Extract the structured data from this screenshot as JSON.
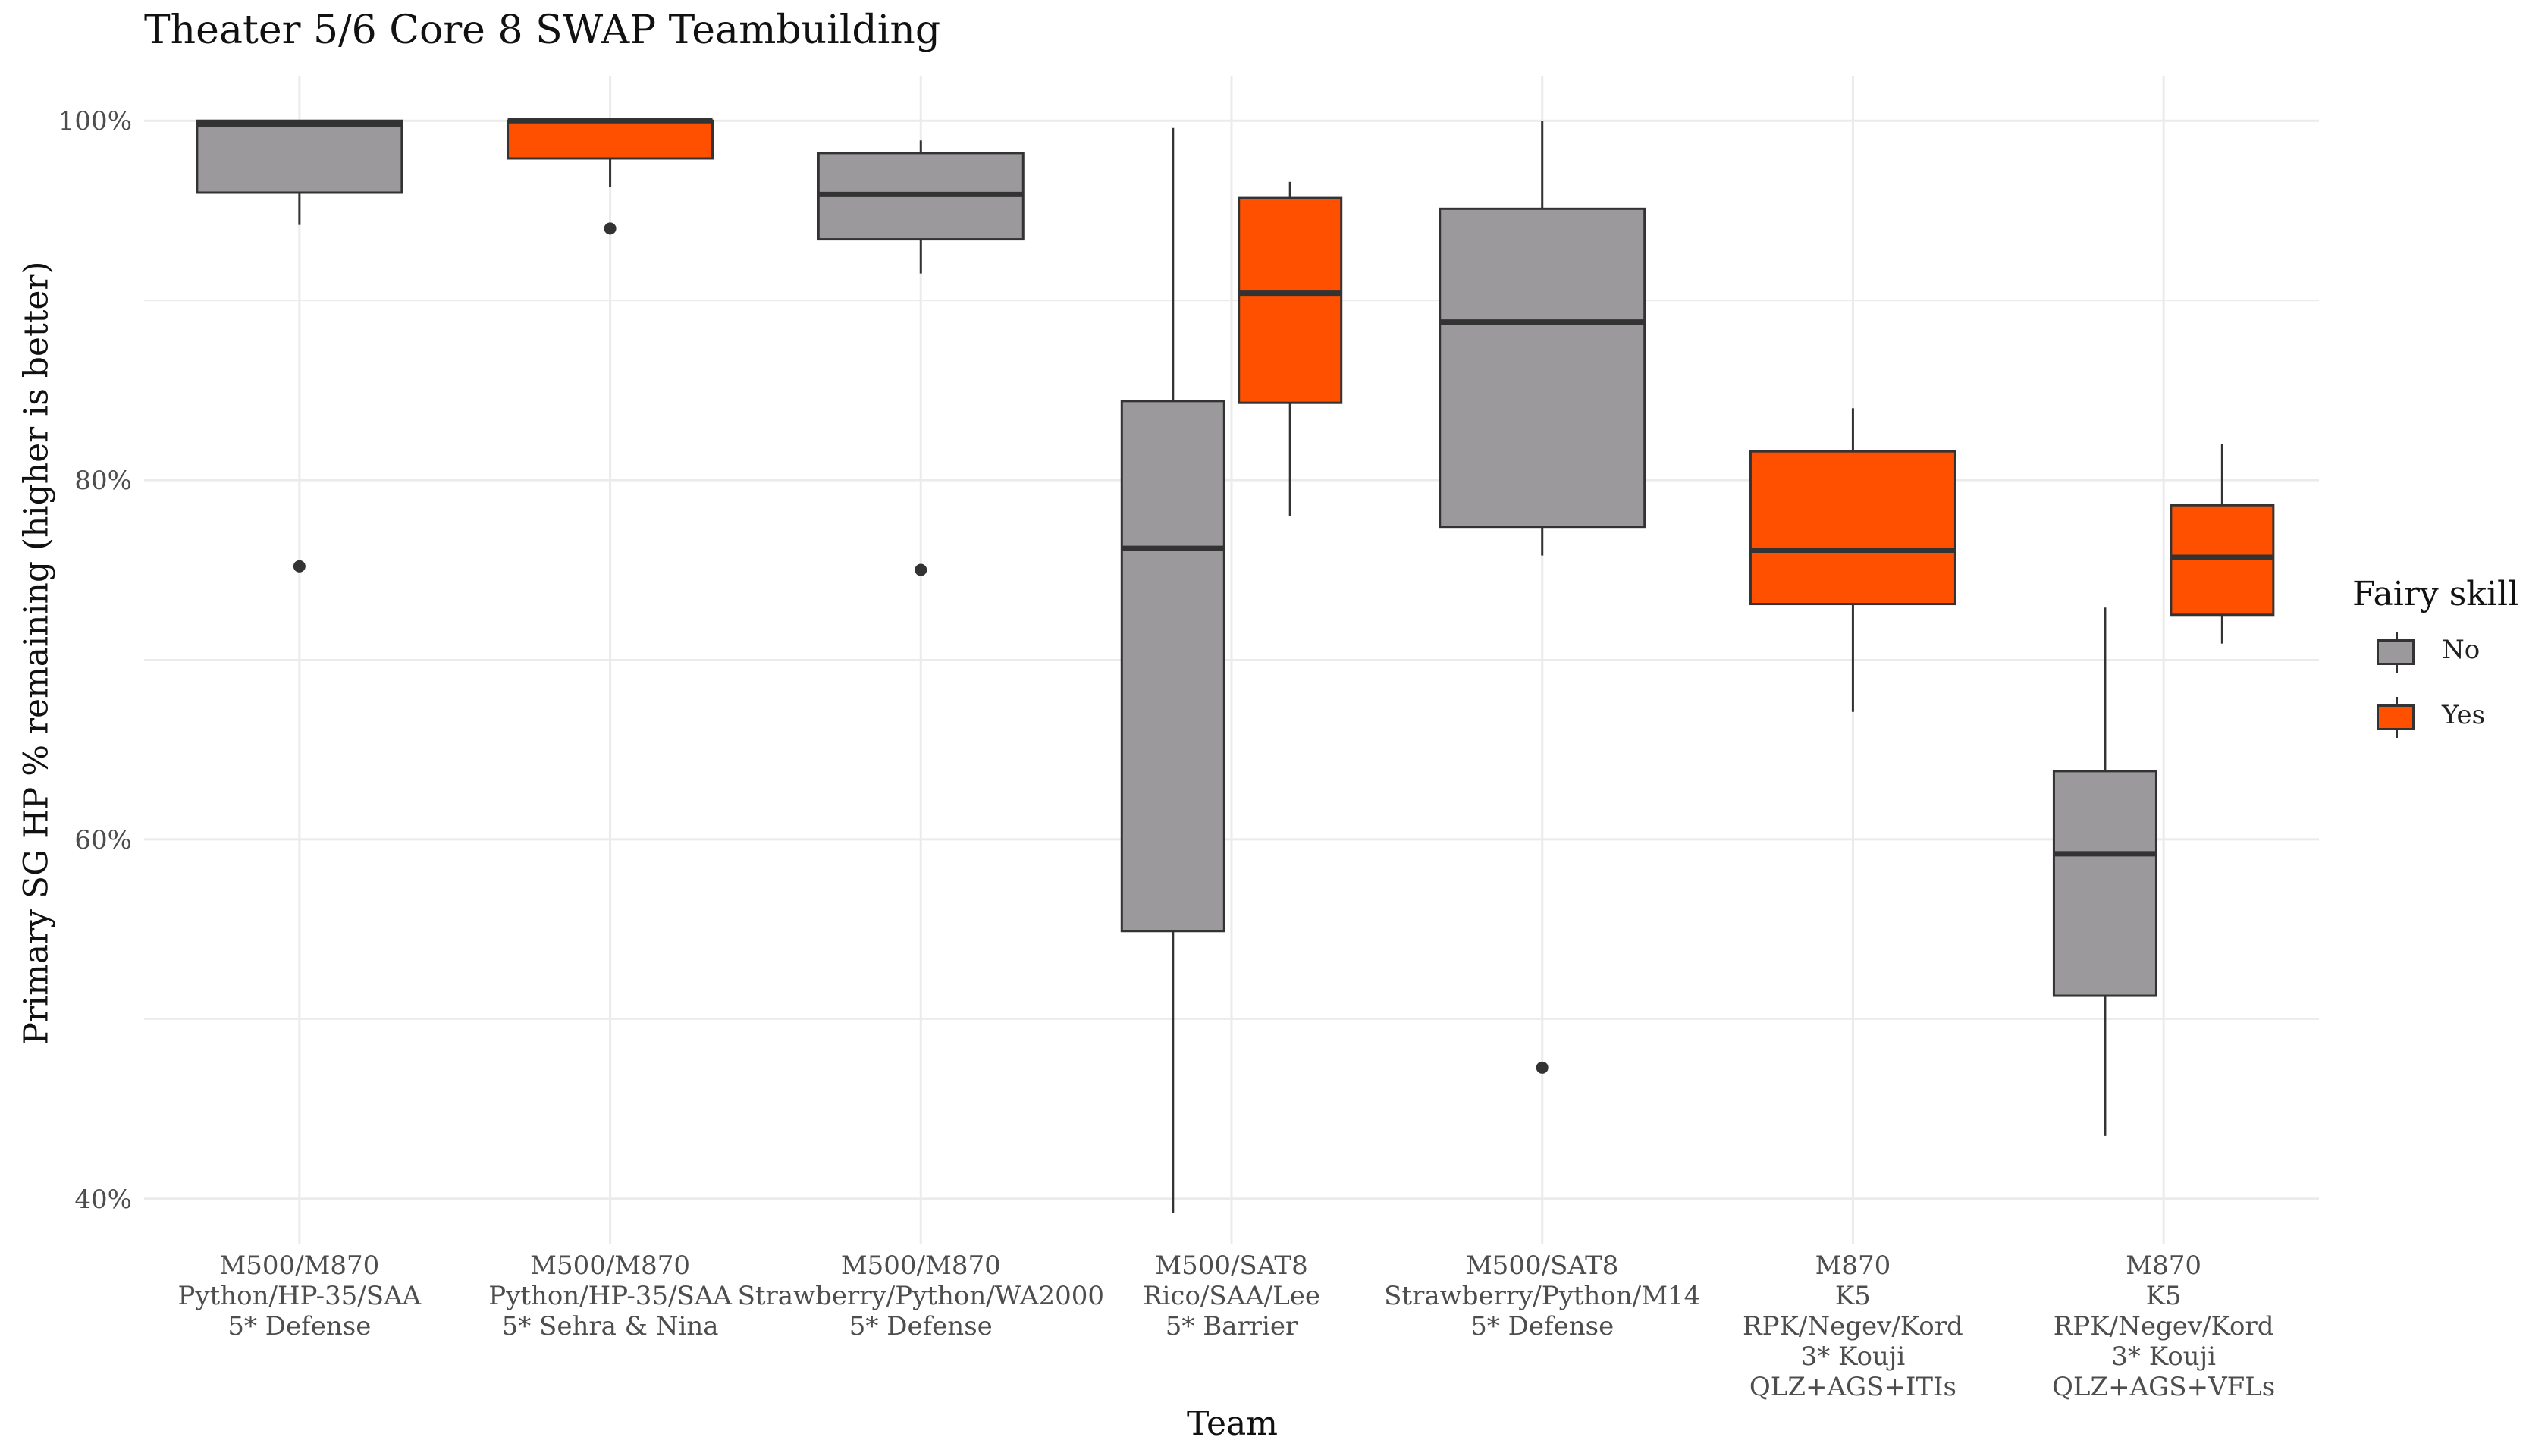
{
  "chart_data": {
    "type": "box",
    "title": "Theater 5/6 Core 8 SWAP Teambuilding",
    "xlabel": "Team",
    "ylabel": "Primary SG HP % remaining (higher is better)",
    "ylim": [
      37.5,
      102.5
    ],
    "y_ticks": [
      40,
      60,
      80,
      100
    ],
    "y_tick_labels": [
      "40%",
      "60%",
      "80%",
      "100%"
    ],
    "grid": true,
    "legend": {
      "title": "Fairy skill",
      "position": "right",
      "entries": [
        {
          "label": "No",
          "color": "#9b999b"
        },
        {
          "label": "Yes",
          "color": "#ff5000"
        }
      ]
    },
    "categories": [
      [
        "M500/M870",
        "Python/HP-35/SAA",
        "5* Defense"
      ],
      [
        "M500/M870",
        "Python/HP-35/SAA",
        "5* Sehra & Nina"
      ],
      [
        "M500/M870",
        "Strawberry/Python/WA2000",
        "5* Defense"
      ],
      [
        "M500/SAT8",
        "Rico/SAA/Lee",
        "5* Barrier"
      ],
      [
        "M500/SAT8",
        "Strawberry/Python/M14",
        "5* Defense"
      ],
      [
        "M870",
        "K5",
        "RPK/Negev/Kord",
        "3* Kouji",
        "QLZ+AGS+ITIs"
      ],
      [
        "M870",
        "K5",
        "RPK/Negev/Kord",
        "3* Kouji",
        "QLZ+AGS+VFLs"
      ]
    ],
    "boxes": [
      {
        "category": 0,
        "fairy_skill": "No",
        "whisker_low": 94.2,
        "q1": 96.0,
        "median": 99.8,
        "q3": 100.0,
        "whisker_high": 100.0,
        "outliers": [
          75.2
        ]
      },
      {
        "category": 1,
        "fairy_skill": "Yes",
        "whisker_low": 96.3,
        "q1": 97.9,
        "median": 100.0,
        "q3": 100.0,
        "whisker_high": 100.0,
        "outliers": [
          94.0
        ]
      },
      {
        "category": 2,
        "fairy_skill": "No",
        "whisker_low": 91.5,
        "q1": 93.4,
        "median": 95.9,
        "q3": 98.2,
        "whisker_high": 98.9,
        "outliers": [
          75.0
        ]
      },
      {
        "category": 3,
        "fairy_skill": "No",
        "whisker_low": 39.2,
        "q1": 54.9,
        "median": 76.2,
        "q3": 84.4,
        "whisker_high": 99.6,
        "outliers": []
      },
      {
        "category": 3,
        "fairy_skill": "Yes",
        "whisker_low": 78.0,
        "q1": 84.3,
        "median": 90.4,
        "q3": 95.7,
        "whisker_high": 96.6,
        "outliers": []
      },
      {
        "category": 4,
        "fairy_skill": "No",
        "whisker_low": 75.8,
        "q1": 77.4,
        "median": 88.8,
        "q3": 95.1,
        "whisker_high": 100.0,
        "outliers": [
          47.3
        ]
      },
      {
        "category": 5,
        "fairy_skill": "Yes",
        "whisker_low": 67.1,
        "q1": 73.1,
        "median": 76.1,
        "q3": 81.6,
        "whisker_high": 84.0,
        "outliers": []
      },
      {
        "category": 6,
        "fairy_skill": "No",
        "whisker_low": 43.5,
        "q1": 51.3,
        "median": 59.2,
        "q3": 63.8,
        "whisker_high": 72.9,
        "outliers": []
      },
      {
        "category": 6,
        "fairy_skill": "Yes",
        "whisker_low": 70.9,
        "q1": 72.5,
        "median": 75.7,
        "q3": 78.6,
        "whisker_high": 82.0,
        "outliers": []
      }
    ]
  }
}
